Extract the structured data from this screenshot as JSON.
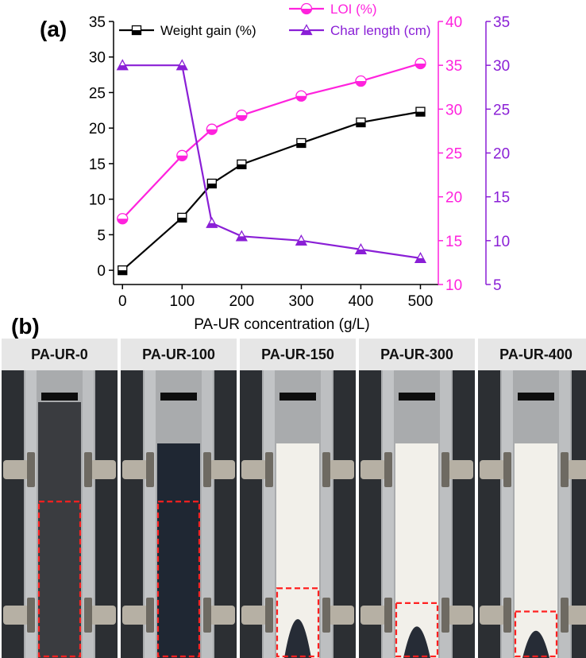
{
  "panel_a_label": "(a)",
  "panel_b_label": "(b)",
  "chart_data": {
    "type": "line",
    "xlabel": "PA-UR concentration (g/L)",
    "x_ticks": [
      0,
      100,
      200,
      300,
      400,
      500
    ],
    "xlim": [
      -15,
      530
    ],
    "colors": {
      "weight": "#000000",
      "loi": "#ff22dd",
      "char": "#8a1fd6"
    },
    "axes": [
      {
        "id": "left",
        "ylim": [
          -2,
          35
        ],
        "ticks": [
          0,
          5,
          10,
          15,
          20,
          25,
          30,
          35
        ]
      },
      {
        "id": "right1",
        "ylim": [
          10,
          40
        ],
        "ticks": [
          10,
          15,
          20,
          25,
          30,
          35,
          40
        ]
      },
      {
        "id": "right2",
        "ylim": [
          5,
          35
        ],
        "ticks": [
          5,
          10,
          15,
          20,
          25,
          30,
          35
        ]
      }
    ],
    "series": [
      {
        "name": "Weight gain (%)",
        "axis": "left",
        "marker": "square",
        "x": [
          0,
          100,
          150,
          200,
          300,
          400,
          500
        ],
        "y": [
          0,
          7.4,
          12.2,
          14.9,
          17.9,
          20.8,
          22.3
        ]
      },
      {
        "name": "LOI (%)",
        "axis": "right1",
        "marker": "circle",
        "x": [
          0,
          100,
          150,
          200,
          300,
          400,
          500
        ],
        "y": [
          17.5,
          24.7,
          27.7,
          29.3,
          31.5,
          33.2,
          35.2
        ]
      },
      {
        "name": "Char length (cm)",
        "axis": "right2",
        "marker": "triangle",
        "x": [
          0,
          100,
          150,
          200,
          300,
          400,
          500
        ],
        "y": [
          30,
          30,
          12,
          10.5,
          10,
          9,
          8
        ]
      }
    ]
  },
  "samples": [
    {
      "label": "PA-UR-0",
      "char_fraction": 0.74,
      "fabric": "dark"
    },
    {
      "label": "PA-UR-100",
      "char_fraction": 0.74,
      "fabric": "charred"
    },
    {
      "label": "PA-UR-150",
      "char_fraction": 0.33,
      "fabric": "white"
    },
    {
      "label": "PA-UR-300",
      "char_fraction": 0.26,
      "fabric": "white"
    },
    {
      "label": "PA-UR-400",
      "char_fraction": 0.22,
      "fabric": "white"
    }
  ]
}
